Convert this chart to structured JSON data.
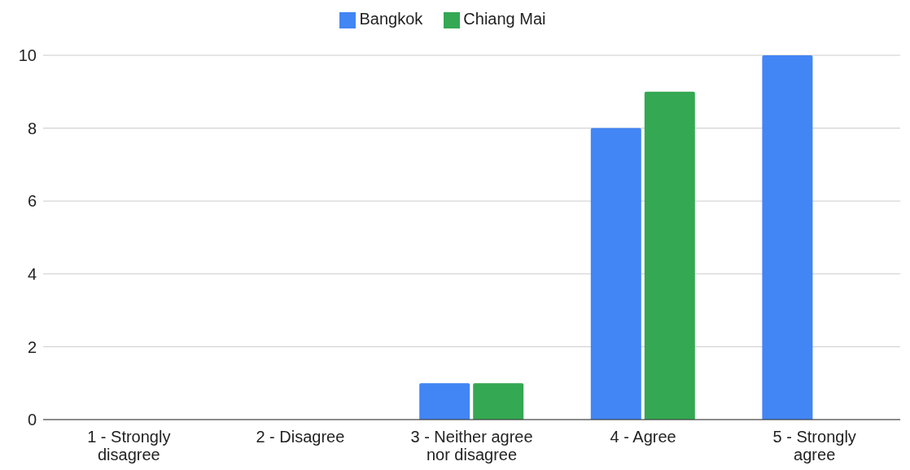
{
  "chart_data": {
    "type": "bar",
    "categories": [
      "1 - Strongly disagree",
      "2 - Disagree",
      "3 - Neither agree nor disagree",
      "4 - Agree",
      "5 - Strongly agree"
    ],
    "series": [
      {
        "name": "Bangkok",
        "color": "#4285f4",
        "values": [
          0,
          0,
          1,
          8,
          10
        ]
      },
      {
        "name": "Chiang Mai",
        "color": "#34a853",
        "values": [
          0,
          0,
          1,
          9,
          0
        ]
      }
    ],
    "ylim": [
      0,
      10
    ],
    "yticks": [
      0,
      2,
      4,
      6,
      8,
      10
    ],
    "grid": "y",
    "legend": "top"
  }
}
